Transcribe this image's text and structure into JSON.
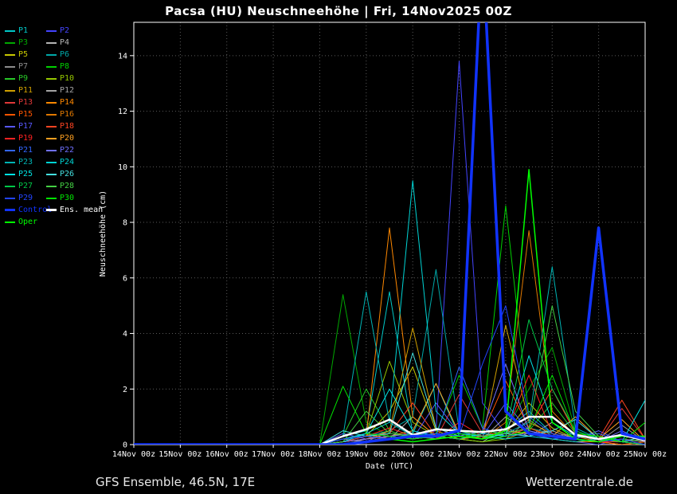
{
  "title": "Pacsa  (HU)  Neuschneehöhe | Fri, 14Nov2025 00Z",
  "footer": {
    "left": "GFS Ensemble, 46.5N, 17E",
    "right": "Wetterzentrale.de"
  },
  "chart_data": {
    "type": "line",
    "title": "Pacsa  (HU)  Neuschneehöhe | Fri, 14Nov2025 00Z",
    "xlabel": "Date (UTC)",
    "ylabel": "Neuschneehöhe (cm)",
    "ylim": [
      0,
      15.2
    ],
    "yticks": [
      0,
      2,
      4,
      6,
      8,
      10,
      12,
      14
    ],
    "grid": "dotted",
    "legend_position": "top-left",
    "background": "#000000",
    "x_hours": [
      0,
      12,
      24,
      36,
      48,
      60,
      72,
      84,
      96,
      108,
      120,
      132,
      144,
      156,
      168,
      180,
      192,
      204,
      216,
      228,
      240,
      252,
      264
    ],
    "xtick_labels": [
      "14Nov 00z",
      "15Nov 00z",
      "16Nov 00z",
      "17Nov 00z",
      "18Nov 00z",
      "19Nov 00z",
      "20Nov 00z",
      "21Nov 00z",
      "22Nov 00z",
      "23Nov 00z",
      "24Nov 00z",
      "25Nov 00z"
    ],
    "series": [
      {
        "name": "P1",
        "color": "#00c8c8",
        "width": 1,
        "values": [
          0,
          0,
          0,
          0,
          0,
          0,
          0,
          0,
          0,
          0.3,
          0.5,
          5.5,
          0.4,
          2.2,
          0.3,
          0.2,
          0.5,
          1.2,
          0.4,
          0.2,
          0.1,
          0.4,
          0.2
        ]
      },
      {
        "name": "P2",
        "color": "#4444ff",
        "width": 1,
        "values": [
          0,
          0,
          0,
          0,
          0,
          0,
          0,
          0,
          0,
          0.1,
          0.2,
          0.4,
          0.3,
          0.5,
          13.8,
          1.5,
          0.4,
          0.3,
          0.2,
          0.1,
          0,
          0.2,
          0
        ]
      },
      {
        "name": "P3",
        "color": "#00a800",
        "width": 1,
        "values": [
          0,
          0,
          0,
          0,
          0,
          0,
          0,
          0,
          0,
          5.4,
          0.8,
          0.3,
          0.2,
          0.4,
          0.3,
          0.2,
          0.5,
          2.0,
          3.5,
          0.5,
          0.2,
          0.1,
          0
        ]
      },
      {
        "name": "P4",
        "color": "#b4b4b4",
        "width": 1,
        "values": [
          0,
          0,
          0,
          0,
          0,
          0,
          0,
          0,
          0,
          0.2,
          0.4,
          0.2,
          1.0,
          0.3,
          0.2,
          0.1,
          0.6,
          0.3,
          0.8,
          0.2,
          0.1,
          0.2,
          0.1
        ]
      },
      {
        "name": "P5",
        "color": "#c8c800",
        "width": 1,
        "values": [
          0,
          0,
          0,
          0,
          0,
          0,
          0,
          0,
          0,
          0.2,
          0.3,
          1.2,
          2.8,
          0.5,
          0.2,
          0.3,
          0.4,
          1.5,
          0.6,
          0.2,
          0.1,
          0,
          0.1
        ]
      },
      {
        "name": "P6",
        "color": "#00a8a8",
        "width": 1,
        "values": [
          0,
          0,
          0,
          0,
          0,
          0,
          0,
          0,
          0,
          0.1,
          0.3,
          0.5,
          1.0,
          6.3,
          0.5,
          0.2,
          0.3,
          0.6,
          0.4,
          0.2,
          0.1,
          0.2,
          0
        ]
      },
      {
        "name": "P7",
        "color": "#8c8c8c",
        "width": 1,
        "values": [
          0,
          0,
          0,
          0,
          0,
          0,
          0,
          0,
          0,
          0.2,
          0.1,
          0.5,
          0.2,
          0.3,
          0.2,
          0.3,
          0.2,
          0.9,
          0.3,
          0.4,
          0.1,
          0.1,
          0
        ]
      },
      {
        "name": "P8",
        "color": "#00d000",
        "width": 1,
        "values": [
          0,
          0,
          0,
          0,
          0,
          0,
          0,
          0,
          0,
          0.1,
          0.2,
          0.3,
          0.2,
          0.4,
          2.5,
          0.6,
          8.6,
          1.0,
          0.4,
          0.2,
          0.1,
          0.1,
          0
        ]
      },
      {
        "name": "P9",
        "color": "#28c828",
        "width": 1,
        "values": [
          0,
          0,
          0,
          0,
          0,
          0,
          0,
          0,
          0,
          0.3,
          2.0,
          0.5,
          0.2,
          0.3,
          0.2,
          0.1,
          0.3,
          0.5,
          1.5,
          0.4,
          0.3,
          0.1,
          0
        ]
      },
      {
        "name": "P10",
        "color": "#96c800",
        "width": 1,
        "values": [
          0,
          0,
          0,
          0,
          0,
          0,
          0,
          0,
          0,
          0.2,
          0.4,
          3.0,
          0.8,
          0.3,
          0.2,
          0.1,
          0.2,
          0.5,
          0.3,
          0.2,
          0.1,
          0,
          0.1
        ]
      },
      {
        "name": "P11",
        "color": "#d0a000",
        "width": 1,
        "values": [
          0,
          0,
          0,
          0,
          0,
          0,
          0,
          0,
          0,
          0.1,
          0.2,
          0.5,
          4.2,
          0.6,
          0.3,
          0.2,
          4.3,
          0.8,
          0.4,
          0.2,
          0.1,
          0.1,
          0
        ]
      },
      {
        "name": "P12",
        "color": "#a4a4a4",
        "width": 1,
        "values": [
          0,
          0,
          0,
          0,
          0,
          0,
          0,
          0,
          0,
          0,
          0.2,
          0.3,
          0.2,
          0.4,
          0.3,
          0.2,
          1.0,
          0.4,
          0.5,
          0.2,
          0.1,
          0.7,
          0.1
        ]
      },
      {
        "name": "P13",
        "color": "#e03838",
        "width": 1,
        "values": [
          0,
          0,
          0,
          0,
          0,
          0,
          0,
          0,
          0,
          0.1,
          0.3,
          0.2,
          0.3,
          0.2,
          1.8,
          0.4,
          0.3,
          0.6,
          0.3,
          0.2,
          0.1,
          1.3,
          0.2
        ]
      },
      {
        "name": "P14",
        "color": "#ff8800",
        "width": 1,
        "values": [
          0,
          0,
          0,
          0,
          0,
          0,
          0,
          0,
          0,
          0.2,
          0.3,
          7.8,
          1.0,
          0.3,
          0.2,
          0.3,
          0.5,
          0.4,
          0.2,
          0.1,
          0.1,
          0,
          0
        ]
      },
      {
        "name": "P15",
        "color": "#ff5500",
        "width": 1,
        "values": [
          0,
          0,
          0,
          0,
          0,
          0,
          0,
          0,
          0,
          0.1,
          0.2,
          0.3,
          0.2,
          0.3,
          0.2,
          0.4,
          2.3,
          0.6,
          0.3,
          0.2,
          0.1,
          0,
          0.1
        ]
      },
      {
        "name": "P16",
        "color": "#e07800",
        "width": 1,
        "values": [
          0,
          0,
          0,
          0,
          0,
          0,
          0,
          0,
          0,
          0,
          0.1,
          0.3,
          0.4,
          0.2,
          0.3,
          0.2,
          0.8,
          7.7,
          1.2,
          0.3,
          0.1,
          0.2,
          0
        ]
      },
      {
        "name": "P17",
        "color": "#5858ff",
        "width": 1,
        "values": [
          0,
          0,
          0,
          0,
          0,
          0,
          0,
          0,
          0,
          0.4,
          0.2,
          0.3,
          0.2,
          1.5,
          0.4,
          0.3,
          1.5,
          0.5,
          0.3,
          0.2,
          0.5,
          0.1,
          0
        ]
      },
      {
        "name": "P18",
        "color": "#ff4422",
        "width": 1,
        "values": [
          0,
          0,
          0,
          0,
          0,
          0,
          0,
          0,
          0,
          0.1,
          0.2,
          0.4,
          1.5,
          0.3,
          0.2,
          0.5,
          0.4,
          0.6,
          2.0,
          0.4,
          0.2,
          1.6,
          0.2
        ]
      },
      {
        "name": "P19",
        "color": "#ff2222",
        "width": 1,
        "values": [
          0,
          0,
          0,
          0,
          0,
          0,
          0,
          0,
          0,
          0.2,
          0.3,
          0.6,
          0.3,
          0.2,
          0.8,
          0.3,
          0.4,
          2.5,
          0.4,
          0.2,
          0.1,
          0.1,
          0
        ]
      },
      {
        "name": "P20",
        "color": "#ffa020",
        "width": 1,
        "values": [
          0,
          0,
          0,
          0,
          0,
          0,
          0,
          0,
          0,
          0.1,
          0.2,
          0.3,
          0.5,
          2.2,
          0.4,
          0.2,
          0.5,
          0.4,
          0.3,
          1.0,
          0.2,
          0.9,
          0.1
        ]
      },
      {
        "name": "P21",
        "color": "#3366ff",
        "width": 1,
        "values": [
          0,
          0,
          0,
          0,
          0,
          0,
          0,
          0,
          0,
          0.2,
          0.4,
          0.3,
          0.2,
          0.3,
          2.8,
          0.6,
          0.3,
          0.4,
          0.2,
          0.3,
          0.4,
          0.1,
          0
        ]
      },
      {
        "name": "P22",
        "color": "#7070ff",
        "width": 1,
        "values": [
          0,
          0,
          0,
          0,
          0,
          0,
          0,
          0,
          0,
          0.1,
          0.2,
          0.3,
          0.4,
          0.2,
          0.3,
          0.5,
          2.9,
          0.5,
          0.3,
          0.2,
          0.1,
          0.5,
          0.1
        ]
      },
      {
        "name": "P23",
        "color": "#00b4b4",
        "width": 1,
        "values": [
          0,
          0,
          0,
          0,
          0,
          0,
          0,
          0,
          0,
          0.3,
          5.5,
          0.8,
          0.3,
          0.4,
          0.3,
          0.2,
          0.4,
          0.8,
          6.4,
          0.6,
          0.2,
          0.1,
          0
        ]
      },
      {
        "name": "P24",
        "color": "#00d4d4",
        "width": 1,
        "values": [
          0,
          0,
          0,
          0,
          0,
          0,
          0,
          0,
          0,
          0.2,
          0.4,
          0.8,
          9.5,
          1.2,
          0.4,
          0.3,
          0.2,
          0.3,
          0.2,
          0.1,
          0.2,
          0.1,
          0
        ]
      },
      {
        "name": "P25",
        "color": "#00e4e4",
        "width": 1,
        "values": [
          0,
          0,
          0,
          0,
          0,
          0,
          0,
          0,
          0,
          0.1,
          0.4,
          2.0,
          0.5,
          0.3,
          0.2,
          0.4,
          0.3,
          3.2,
          0.8,
          0.3,
          0.2,
          0.1,
          1.6
        ]
      },
      {
        "name": "P26",
        "color": "#44e0e0",
        "width": 1,
        "values": [
          0,
          0,
          0,
          0,
          0,
          0,
          0,
          0,
          0,
          0.5,
          0.3,
          0.4,
          3.3,
          0.6,
          0.3,
          0.2,
          0.4,
          0.3,
          0.5,
          0.9,
          0.2,
          0.1,
          0.3
        ]
      },
      {
        "name": "P27",
        "color": "#00c848",
        "width": 1,
        "values": [
          0,
          0,
          0,
          0,
          0,
          0,
          0,
          0,
          0,
          0.2,
          0.3,
          0.2,
          0.4,
          0.3,
          0.2,
          0.5,
          0.4,
          4.5,
          2.0,
          0.5,
          0.2,
          0.1,
          0
        ]
      },
      {
        "name": "P28",
        "color": "#44d044",
        "width": 1,
        "values": [
          0,
          0,
          0,
          0,
          0,
          0,
          0,
          0,
          0,
          0.1,
          1.2,
          0.4,
          0.3,
          0.2,
          0.5,
          0.3,
          0.4,
          0.6,
          5.0,
          1.2,
          0.3,
          0.1,
          0.2
        ]
      },
      {
        "name": "P29",
        "color": "#2244ff",
        "width": 1,
        "values": [
          0,
          0,
          0,
          0,
          0,
          0,
          0,
          0,
          0,
          0.2,
          0.3,
          0.2,
          0.3,
          0.4,
          0.3,
          2.9,
          5.0,
          1.0,
          0.4,
          0.2,
          0.1,
          0.2,
          0
        ]
      },
      {
        "name": "P30",
        "color": "#00e600",
        "width": 1,
        "values": [
          0,
          0,
          0,
          0,
          0,
          0,
          0,
          0,
          0,
          2.1,
          0.4,
          0.3,
          0.2,
          0.3,
          0.4,
          0.2,
          0.3,
          0.5,
          2.5,
          0.4,
          0.3,
          0.1,
          0.8
        ]
      },
      {
        "name": "Control",
        "color": "#1133ff",
        "width": 3.5,
        "values": [
          0,
          0,
          0,
          0,
          0,
          0,
          0,
          0,
          0,
          0,
          0.1,
          0.2,
          0.3,
          0.3,
          0.5,
          18.0,
          1.2,
          0.4,
          0.3,
          0.2,
          7.8,
          0.4,
          0.2
        ]
      },
      {
        "name": "Ens. mean",
        "color": "#ffffff",
        "width": 2.5,
        "values": [
          0,
          0,
          0,
          0,
          0,
          0,
          0,
          0,
          0,
          0.3,
          0.55,
          0.9,
          0.35,
          0.55,
          0.5,
          0.45,
          0.55,
          1.0,
          1.0,
          0.35,
          0.2,
          0.35,
          0.15
        ]
      },
      {
        "name": "Oper",
        "color": "#00ff00",
        "width": 1.5,
        "values": [
          0,
          0,
          0,
          0,
          0,
          0,
          0,
          0,
          0,
          0,
          0.1,
          0.2,
          0.1,
          0.2,
          0.3,
          0.2,
          0.5,
          9.9,
          0.8,
          0.2,
          0.1,
          0.3,
          0.3
        ]
      }
    ]
  }
}
